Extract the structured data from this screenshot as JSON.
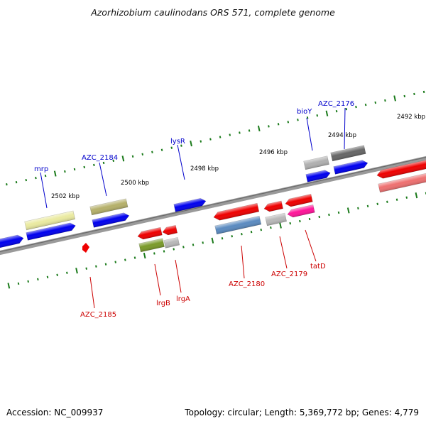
{
  "title": "Azorhizobium caulinodans ORS 571, complete genome",
  "footer": {
    "accession": "Accession: NC_009937",
    "summary": "Topology: circular; Length: 5,369,772 bp; Genes: 4,779"
  },
  "colors": {
    "backbone": "#8a8a8a",
    "tick": "#1a7a1a",
    "label_forward": "#0000cc",
    "label_reverse": "#cc0000",
    "kbp_text": "#000000"
  },
  "kbp_labels": [
    "2492 kbp",
    "2494 kbp",
    "2496 kbp",
    "2498 kbp",
    "2500 kbp",
    "2502 kbp"
  ],
  "gene_labels": {
    "forward": [
      "AZC_2176",
      "bioY",
      "lysR",
      "AZC_2184",
      "mrp"
    ],
    "reverse": [
      "tatD",
      "AZC_2179",
      "AZC_2180",
      "lrgA",
      "lrgB",
      "AZC_2185"
    ]
  }
}
